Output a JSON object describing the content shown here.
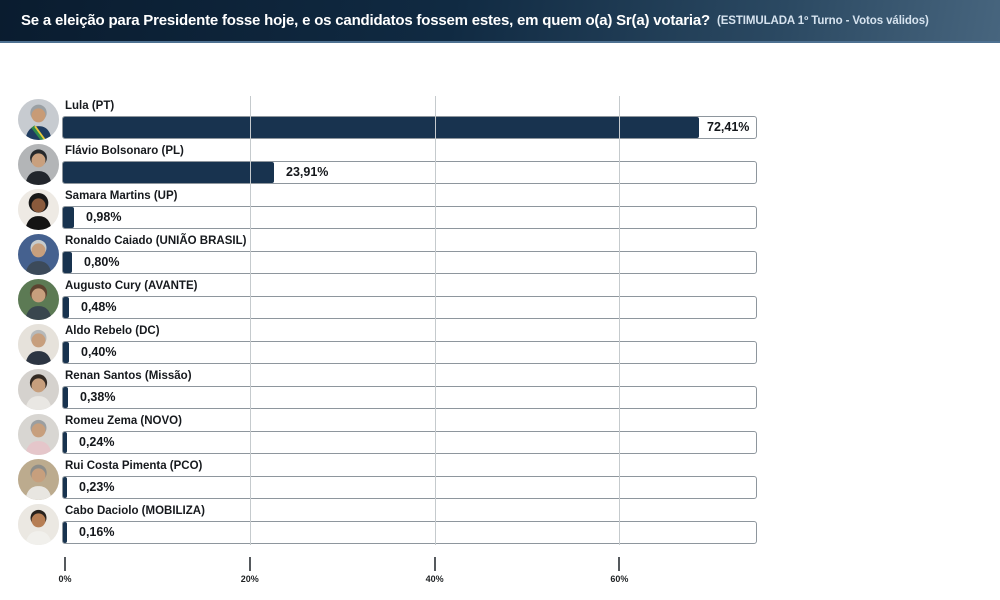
{
  "header": {
    "title": "Se a eleição para Presidente fosse hoje, e os candidatos fossem estes, em quem o(a) Sr(a) votaria?",
    "subtitle": "(ESTIMULADA 1º Turno - Votos válidos)"
  },
  "chart_data": {
    "type": "bar",
    "orientation": "horizontal",
    "title": "Se a eleição para Presidente fosse hoje, e os candidatos fossem estes, em quem o(a) Sr(a) votaria? (ESTIMULADA 1º Turno - Votos válidos)",
    "categories": [
      "Lula (PT)",
      "Flávio Bolsonaro (PL)",
      "Samara Martins (UP)",
      "Ronaldo Caiado (UNIÃO BRASIL)",
      "Augusto Cury (AVANTE)",
      "Aldo Rebelo (DC)",
      "Renan Santos (Missão)",
      "Romeu Zema (NOVO)",
      "Rui Costa Pimenta (PCO)",
      "Cabo Daciolo (MOBILIZA)"
    ],
    "values": [
      72.41,
      23.91,
      0.98,
      0.8,
      0.48,
      0.4,
      0.38,
      0.24,
      0.23,
      0.16
    ],
    "value_labels": [
      "72,41%",
      "23,91%",
      "0,98%",
      "0,80%",
      "0,48%",
      "0,40%",
      "0,38%",
      "0,24%",
      "0,23%",
      "0,16%"
    ],
    "xlim": [
      0,
      75
    ],
    "x_ticks": [
      {
        "value": 0,
        "label": "0%"
      },
      {
        "value": 20,
        "label": "20%"
      },
      {
        "value": 40,
        "label": "40%"
      },
      {
        "value": 60,
        "label": "60%"
      }
    ],
    "grid": true,
    "legend": false,
    "bar_color": "#18334f",
    "track_border_color": "#8e969d",
    "gridline_color": "#c5cacd"
  },
  "avatars": [
    {
      "name": "lula-photo",
      "bg": "#c7cbd0",
      "hair": "#9aa0a4",
      "skin": "#c89b76",
      "suit": "#1f3c60",
      "hair_r": 8.0,
      "accent1": "#2f8a4b",
      "accent2": "#e7c93c"
    },
    {
      "name": "flavio-photo",
      "bg": "#b3b5b7",
      "hair": "#26292c",
      "skin": "#c9a07e",
      "suit": "#22262c",
      "hair_r": 8.2
    },
    {
      "name": "samara-photo",
      "bg": "#eeeae4",
      "hair": "#181818",
      "skin": "#8a5a3c",
      "suit": "#141414",
      "hair_r": 9.6
    },
    {
      "name": "caiado-photo",
      "bg": "#45618f",
      "hair": "#c8cccd",
      "skin": "#c79f7d",
      "suit": "#3c4a5a",
      "hair_r": 7.8
    },
    {
      "name": "cury-photo",
      "bg": "#5c7a54",
      "hair": "#5d4330",
      "skin": "#c79f7d",
      "suit": "#39464e",
      "hair_r": 8.4
    },
    {
      "name": "aldo-photo",
      "bg": "#e6e2db",
      "hair": "#b6b9ba",
      "skin": "#c79f7d",
      "suit": "#2c3542",
      "hair_r": 7.8
    },
    {
      "name": "renan-photo",
      "bg": "#d5d2ce",
      "hair": "#332a23",
      "skin": "#c79f7d",
      "suit": "#e9e7e3",
      "hair_r": 8.4
    },
    {
      "name": "zema-photo",
      "bg": "#d8d6d2",
      "hair": "#9b9fa1",
      "skin": "#c79f7d",
      "suit": "#e5c6ca",
      "hair_r": 7.8
    },
    {
      "name": "rui-photo",
      "bg": "#bcab8e",
      "hair": "#8d8d89",
      "skin": "#c79f7d",
      "suit": "#e8e6e1",
      "hair_r": 8.0
    },
    {
      "name": "daciolo-photo",
      "bg": "#ebe8e2",
      "hair": "#27221d",
      "skin": "#b67e54",
      "suit": "#f1f0ec",
      "hair_r": 7.8
    }
  ]
}
